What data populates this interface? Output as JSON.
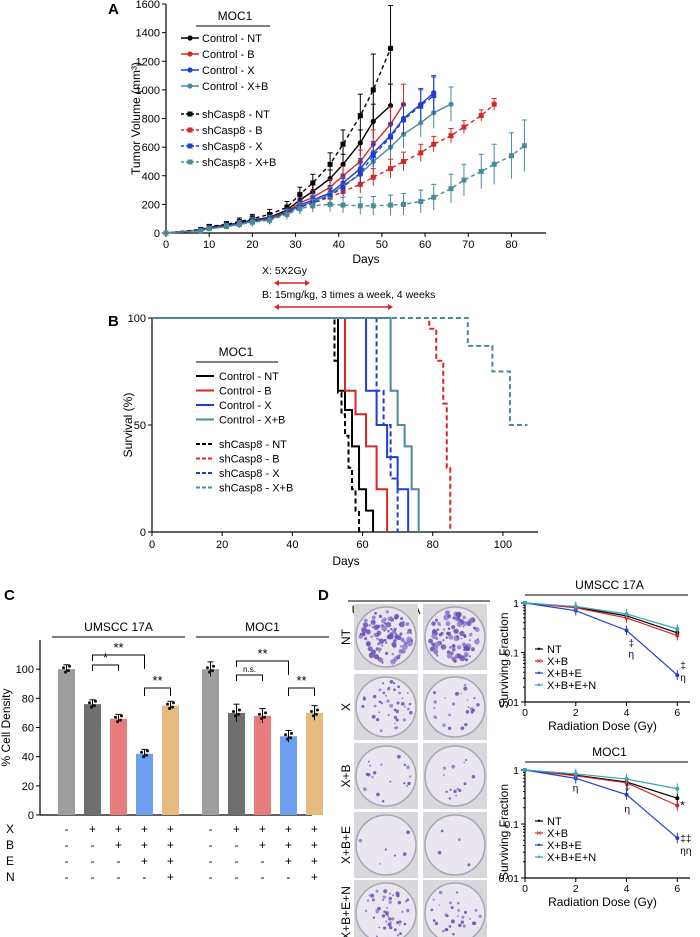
{
  "panel_labels": [
    "A",
    "B",
    "C",
    "D"
  ],
  "chart_data": [
    {
      "panel": "A",
      "type": "line",
      "title": "MOC1",
      "xlabel": "Days",
      "ylabel": "Tumor Volume (mm³)",
      "xlim": [
        0,
        88
      ],
      "ylim": [
        0,
        1600
      ],
      "xticks": [
        0,
        10,
        20,
        30,
        40,
        50,
        60,
        70,
        80
      ],
      "yticks": [
        0,
        200,
        400,
        600,
        800,
        1000,
        1200,
        1400,
        1600
      ],
      "series": [
        {
          "name": "Control - NT",
          "color": "#000000",
          "dash": false,
          "marker": "circle",
          "x": [
            0,
            8,
            10,
            14,
            17,
            20,
            24,
            28,
            31,
            34,
            38,
            41,
            45,
            48,
            52
          ],
          "y": [
            0,
            20,
            40,
            55,
            70,
            90,
            110,
            160,
            230,
            290,
            380,
            480,
            630,
            780,
            890
          ],
          "err": [
            0,
            10,
            15,
            20,
            25,
            30,
            30,
            35,
            40,
            50,
            60,
            70,
            90,
            120,
            150
          ]
        },
        {
          "name": "Control - B",
          "color": "#d62728",
          "dash": false,
          "marker": "circle",
          "x": [
            0,
            8,
            10,
            14,
            17,
            20,
            24,
            28,
            31,
            34,
            38,
            41,
            45,
            48,
            52,
            55
          ],
          "y": [
            0,
            20,
            35,
            50,
            65,
            85,
            105,
            150,
            210,
            250,
            320,
            400,
            500,
            620,
            760,
            900
          ],
          "err": [
            0,
            10,
            15,
            20,
            25,
            30,
            30,
            35,
            40,
            45,
            55,
            65,
            80,
            100,
            120,
            140
          ]
        },
        {
          "name": "Control - X",
          "color": "#1f3fd0",
          "dash": false,
          "marker": "circle",
          "x": [
            0,
            8,
            10,
            14,
            17,
            20,
            24,
            28,
            31,
            34,
            38,
            41,
            45,
            48,
            52,
            55,
            59,
            62
          ],
          "y": [
            0,
            20,
            35,
            50,
            65,
            85,
            100,
            145,
            195,
            230,
            280,
            350,
            450,
            560,
            680,
            800,
            900,
            980
          ],
          "err": [
            0,
            10,
            15,
            20,
            25,
            30,
            30,
            35,
            40,
            45,
            50,
            60,
            70,
            80,
            90,
            100,
            110,
            120
          ]
        },
        {
          "name": "Control - X+B",
          "color": "#4b8a9a",
          "dash": false,
          "marker": "circle",
          "x": [
            0,
            8,
            10,
            14,
            17,
            20,
            24,
            28,
            31,
            34,
            38,
            41,
            45,
            48,
            52,
            55,
            59,
            62,
            66
          ],
          "y": [
            0,
            20,
            30,
            45,
            60,
            80,
            95,
            140,
            185,
            220,
            270,
            330,
            410,
            500,
            600,
            690,
            770,
            840,
            900
          ],
          "err": [
            0,
            10,
            15,
            20,
            25,
            30,
            30,
            35,
            40,
            45,
            50,
            55,
            65,
            75,
            85,
            95,
            100,
            110,
            120
          ]
        },
        {
          "name": "shCasp8 - NT",
          "color": "#000000",
          "dash": true,
          "marker": "square",
          "x": [
            0,
            8,
            10,
            14,
            17,
            20,
            24,
            28,
            31,
            34,
            38,
            41,
            45,
            48,
            52
          ],
          "y": [
            0,
            25,
            45,
            60,
            80,
            100,
            130,
            180,
            270,
            350,
            480,
            620,
            820,
            1000,
            1290
          ],
          "err": [
            0,
            10,
            15,
            20,
            25,
            30,
            35,
            40,
            50,
            60,
            80,
            100,
            150,
            250,
            300
          ]
        },
        {
          "name": "shCasp8 - B",
          "color": "#d62728",
          "dash": true,
          "marker": "square",
          "x": [
            0,
            8,
            10,
            14,
            17,
            20,
            24,
            28,
            31,
            34,
            38,
            41,
            45,
            48,
            52,
            55,
            59,
            62,
            66,
            69,
            73,
            76
          ],
          "y": [
            0,
            20,
            35,
            50,
            65,
            80,
            95,
            140,
            180,
            210,
            250,
            290,
            340,
            390,
            450,
            500,
            560,
            620,
            680,
            740,
            820,
            900
          ],
          "err": [
            0,
            10,
            15,
            20,
            25,
            30,
            30,
            35,
            40,
            45,
            50,
            55,
            60,
            60,
            65,
            65,
            60,
            55,
            50,
            45,
            40,
            40
          ]
        },
        {
          "name": "shCasp8 - X",
          "color": "#1f3fd0",
          "dash": true,
          "marker": "square",
          "x": [
            0,
            8,
            10,
            14,
            17,
            20,
            24,
            28,
            31,
            34,
            38,
            41,
            45,
            48,
            52,
            55,
            59,
            62
          ],
          "y": [
            0,
            20,
            35,
            50,
            65,
            80,
            95,
            140,
            180,
            210,
            260,
            320,
            420,
            540,
            670,
            790,
            890,
            960
          ],
          "err": [
            0,
            10,
            15,
            20,
            25,
            30,
            30,
            35,
            40,
            45,
            50,
            60,
            70,
            80,
            90,
            100,
            110,
            130
          ]
        },
        {
          "name": "shCasp8 - X+B",
          "color": "#4b8a9a",
          "dash": true,
          "marker": "square",
          "x": [
            0,
            8,
            10,
            14,
            17,
            20,
            24,
            28,
            31,
            34,
            38,
            41,
            45,
            48,
            52,
            55,
            59,
            62,
            66,
            69,
            73,
            76,
            80,
            83
          ],
          "y": [
            0,
            15,
            30,
            45,
            60,
            75,
            90,
            130,
            170,
            190,
            200,
            195,
            190,
            190,
            195,
            200,
            220,
            250,
            310,
            370,
            430,
            480,
            540,
            610
          ],
          "err": [
            0,
            10,
            15,
            20,
            25,
            30,
            30,
            35,
            40,
            45,
            50,
            55,
            60,
            65,
            70,
            75,
            80,
            90,
            100,
            110,
            120,
            140,
            160,
            180
          ]
        }
      ]
    },
    {
      "panel": "B",
      "type": "line",
      "title": "MOC1",
      "xlabel": "Days",
      "ylabel": "Survival (%)",
      "xlim": [
        0,
        110
      ],
      "ylim": [
        0,
        100
      ],
      "xticks": [
        0,
        20,
        40,
        60,
        80,
        100
      ],
      "yticks": [
        0,
        50,
        100
      ],
      "series": [
        {
          "name": "Control - NT",
          "color": "#000000",
          "dash": false,
          "x": [
            0,
            53,
            55,
            57,
            59,
            61,
            63
          ],
          "y": [
            100,
            66,
            57,
            40,
            20,
            10,
            0
          ]
        },
        {
          "name": "Control - B",
          "color": "#d62728",
          "dash": false,
          "x": [
            0,
            55,
            58,
            61,
            64,
            67
          ],
          "y": [
            100,
            66,
            55,
            40,
            20,
            0
          ]
        },
        {
          "name": "Control - X",
          "color": "#1f3fd0",
          "dash": false,
          "x": [
            0,
            61,
            64,
            67,
            70,
            73
          ],
          "y": [
            100,
            66,
            50,
            35,
            20,
            0
          ]
        },
        {
          "name": "Control - X+B",
          "color": "#4b8a9a",
          "dash": false,
          "x": [
            0,
            68,
            70,
            72,
            74,
            76
          ],
          "y": [
            100,
            66,
            50,
            40,
            20,
            0
          ]
        },
        {
          "name": "shCasp8 - NT",
          "color": "#000000",
          "dash": true,
          "x": [
            0,
            52,
            53,
            54,
            55,
            56,
            57,
            58,
            59
          ],
          "y": [
            100,
            80,
            65,
            55,
            45,
            30,
            20,
            10,
            0
          ]
        },
        {
          "name": "shCasp8 - B",
          "color": "#d62728",
          "dash": true,
          "x": [
            0,
            79,
            81,
            83,
            84,
            85
          ],
          "y": [
            100,
            95,
            80,
            60,
            30,
            0
          ]
        },
        {
          "name": "shCasp8 - X",
          "color": "#1f3fd0",
          "dash": true,
          "x": [
            0,
            64,
            66,
            68,
            70
          ],
          "y": [
            100,
            66,
            50,
            25,
            0
          ]
        },
        {
          "name": "shCasp8 - X+B",
          "color": "#4b8a9a",
          "dash": true,
          "x": [
            0,
            86,
            90,
            97,
            102,
            105
          ],
          "y": [
            100,
            100,
            87,
            75,
            50,
            50
          ]
        }
      ]
    },
    {
      "panel": "C",
      "type": "bar",
      "ylabel": "% Cell Density",
      "ylim": [
        0,
        120
      ],
      "yticks": [
        0,
        20,
        40,
        60,
        80,
        100
      ],
      "groups": [
        {
          "name": "UMSCC 17A",
          "categories": [
            "NT",
            "X",
            "X+B",
            "X+B+E",
            "X+B+E+N"
          ],
          "values": [
            100,
            76,
            66,
            42,
            75
          ],
          "errors": [
            3,
            3,
            3,
            3,
            3
          ]
        },
        {
          "name": "MOC1",
          "categories": [
            "NT",
            "X",
            "X+B",
            "X+B+E",
            "X+B+E+N"
          ],
          "values": [
            100,
            70,
            68,
            54,
            70
          ],
          "errors": [
            5,
            6,
            5,
            4,
            5
          ]
        }
      ],
      "bar_colors": [
        "#9e9e9e",
        "#6f6f6f",
        "#e77c7c",
        "#6f9ff0",
        "#e8ba7f"
      ],
      "annotations": {
        "umscc": [
          "*",
          "**",
          "**"
        ],
        "moc1": [
          "n.s.",
          "**",
          "**"
        ]
      },
      "condition_rows": [
        {
          "label": "X",
          "values": [
            "-",
            "+",
            "+",
            "+",
            "+"
          ]
        },
        {
          "label": "B",
          "values": [
            "-",
            "-",
            "+",
            "+",
            "+"
          ]
        },
        {
          "label": "E",
          "values": [
            "-",
            "-",
            "-",
            "+",
            "+"
          ]
        },
        {
          "label": "N",
          "values": [
            "-",
            "-",
            "-",
            "-",
            "+"
          ]
        }
      ]
    },
    {
      "panel": "D-plates",
      "type": "table",
      "columns": [
        "UMSCC 17A",
        "MOC1"
      ],
      "rows": [
        "NT",
        "X",
        "X+B",
        "X+B+E",
        "X+B+E+N"
      ],
      "colony_density": [
        [
          0.9,
          0.85
        ],
        [
          0.35,
          0.2
        ],
        [
          0.15,
          0.12
        ],
        [
          0.05,
          0.03
        ],
        [
          0.4,
          0.25
        ]
      ]
    },
    {
      "panel": "D-top",
      "type": "line",
      "title": "UMSCC 17A",
      "xlabel": "Radiation Dose (Gy)",
      "ylabel": "Surviving Fraction",
      "xlim": [
        0,
        6.5
      ],
      "ylim": [
        0.01,
        1
      ],
      "log_y": true,
      "xticks": [
        0,
        2,
        4,
        6
      ],
      "yticks": [
        0.01,
        0.1,
        1
      ],
      "ytick_labels": [
        "0.01",
        "0.1",
        "1"
      ],
      "series": [
        {
          "name": "NT",
          "color": "#000000",
          "x": [
            0,
            2,
            4,
            6
          ],
          "y": [
            1,
            0.82,
            0.55,
            0.25
          ]
        },
        {
          "name": "X+B",
          "color": "#d62728",
          "x": [
            0,
            2,
            4,
            6
          ],
          "y": [
            1,
            0.8,
            0.5,
            0.22
          ]
        },
        {
          "name": "X+B+E",
          "color": "#1f3fd0",
          "x": [
            0,
            2,
            4,
            6
          ],
          "y": [
            1,
            0.7,
            0.28,
            0.035
          ]
        },
        {
          "name": "X+B+E+N",
          "color": "#3aa6b3",
          "x": [
            0,
            2,
            4,
            6
          ],
          "y": [
            1,
            0.85,
            0.6,
            0.3
          ]
        }
      ],
      "annotations": [
        "‡",
        "η",
        "‡",
        "η"
      ]
    },
    {
      "panel": "D-bottom",
      "type": "line",
      "title": "MOC1",
      "xlabel": "Radiation Dose (Gy)",
      "ylabel": "Surviving Fraction",
      "xlim": [
        0,
        6.5
      ],
      "ylim": [
        0.01,
        1
      ],
      "log_y": true,
      "xticks": [
        0,
        2,
        4,
        6
      ],
      "yticks": [
        0.01,
        0.1,
        1
      ],
      "ytick_labels": [
        "0.01",
        "0.1",
        "1"
      ],
      "series": [
        {
          "name": "NT",
          "color": "#000000",
          "x": [
            0,
            2,
            4,
            6
          ],
          "y": [
            1,
            0.8,
            0.6,
            0.3
          ]
        },
        {
          "name": "X+B",
          "color": "#d62728",
          "x": [
            0,
            2,
            4,
            6
          ],
          "y": [
            1,
            0.78,
            0.58,
            0.22
          ]
        },
        {
          "name": "X+B+E",
          "color": "#1f3fd0",
          "x": [
            0,
            2,
            4,
            6
          ],
          "y": [
            1,
            0.7,
            0.35,
            0.055
          ]
        },
        {
          "name": "X+B+E+N",
          "color": "#3aa6b3",
          "x": [
            0,
            2,
            4,
            6
          ],
          "y": [
            1,
            0.85,
            0.68,
            0.45
          ]
        }
      ],
      "annotations": [
        "η",
        "‡",
        "η",
        "*",
        "‡‡",
        "ηη"
      ]
    }
  ],
  "treatment_schedule": {
    "x_label": "X: 5X2Gy",
    "b_label": "B: 15mg/kg, 3 times a week, 4 weeks"
  },
  "percent_marks": {
    "c_y_tick_suffix": ""
  }
}
